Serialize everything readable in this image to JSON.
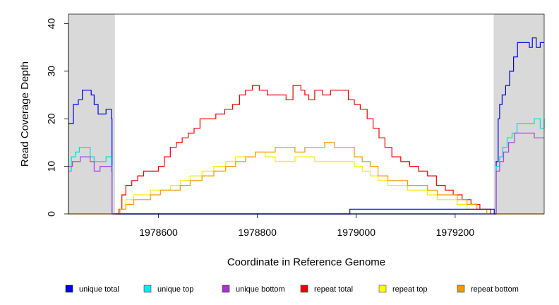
{
  "chart_data": {
    "type": "line",
    "title": "",
    "xlabel": "Coordinate in Reference Genome",
    "ylabel": "Read Coverage Depth",
    "xlim": [
      1978418,
      1979380
    ],
    "ylim": [
      0,
      42
    ],
    "x_ticks": [
      1978600,
      1978800,
      1979000,
      1979200
    ],
    "x_tick_labels": [
      "1978600",
      "1978800",
      "1979000",
      "1979200"
    ],
    "y_ticks": [
      0,
      10,
      20,
      30,
      40
    ],
    "y_tick_labels": [
      "0",
      "10",
      "20",
      "30",
      "40"
    ],
    "shaded_regions": [
      {
        "from": 1978418,
        "to": 1978512,
        "color": "#d9d9d9"
      },
      {
        "from": 1979278,
        "to": 1979380,
        "color": "#d9d9d9"
      }
    ],
    "series": [
      {
        "name": "unique total",
        "color": "#0000ee",
        "points": [
          [
            1978418,
            19
          ],
          [
            1978428,
            23
          ],
          [
            1978438,
            24
          ],
          [
            1978446,
            26
          ],
          [
            1978464,
            25
          ],
          [
            1978470,
            23
          ],
          [
            1978478,
            21
          ],
          [
            1978494,
            22
          ],
          [
            1978505,
            20
          ],
          [
            1978506,
            0
          ],
          [
            1979282,
            0
          ],
          [
            1979283,
            11
          ],
          [
            1979287,
            20
          ],
          [
            1979290,
            23
          ],
          [
            1979295,
            25
          ],
          [
            1979302,
            27
          ],
          [
            1979310,
            30
          ],
          [
            1979318,
            33
          ],
          [
            1979326,
            36
          ],
          [
            1979350,
            35
          ],
          [
            1979356,
            37
          ],
          [
            1979364,
            35
          ],
          [
            1979372,
            36
          ],
          [
            1979380,
            36
          ]
        ]
      },
      {
        "name": "unique top",
        "color": "#00dddd",
        "points": [
          [
            1978418,
            9
          ],
          [
            1978424,
            12
          ],
          [
            1978432,
            13
          ],
          [
            1978440,
            14
          ],
          [
            1978462,
            12
          ],
          [
            1978470,
            11
          ],
          [
            1978480,
            11
          ],
          [
            1978494,
            12
          ],
          [
            1978505,
            10
          ],
          [
            1978506,
            0
          ],
          [
            1979282,
            0
          ],
          [
            1979283,
            10
          ],
          [
            1979290,
            12
          ],
          [
            1979296,
            14
          ],
          [
            1979305,
            16
          ],
          [
            1979315,
            17
          ],
          [
            1979325,
            19
          ],
          [
            1979360,
            20
          ],
          [
            1979372,
            18
          ],
          [
            1979380,
            20
          ]
        ]
      },
      {
        "name": "unique bottom",
        "color": "#aa44dd",
        "points": [
          [
            1978418,
            10
          ],
          [
            1978426,
            11
          ],
          [
            1978442,
            12
          ],
          [
            1978462,
            11
          ],
          [
            1978470,
            9
          ],
          [
            1978482,
            10
          ],
          [
            1978494,
            10
          ],
          [
            1978505,
            9
          ],
          [
            1978506,
            0
          ],
          [
            1979282,
            0
          ],
          [
            1979283,
            9
          ],
          [
            1979290,
            11
          ],
          [
            1979298,
            13
          ],
          [
            1979308,
            15
          ],
          [
            1979320,
            17
          ],
          [
            1979360,
            16
          ],
          [
            1979380,
            16
          ]
        ]
      },
      {
        "name": "repeat total",
        "color": "#ee0000",
        "points": [
          [
            1978512,
            0
          ],
          [
            1978520,
            1
          ],
          [
            1978526,
            4
          ],
          [
            1978534,
            6
          ],
          [
            1978546,
            7
          ],
          [
            1978558,
            8
          ],
          [
            1978570,
            9
          ],
          [
            1978582,
            9
          ],
          [
            1978600,
            10
          ],
          [
            1978612,
            12
          ],
          [
            1978624,
            14
          ],
          [
            1978636,
            15
          ],
          [
            1978648,
            16
          ],
          [
            1978660,
            17
          ],
          [
            1978672,
            18
          ],
          [
            1978684,
            20
          ],
          [
            1978700,
            20
          ],
          [
            1978716,
            21
          ],
          [
            1978734,
            22
          ],
          [
            1978750,
            23
          ],
          [
            1978764,
            25
          ],
          [
            1978776,
            26
          ],
          [
            1978790,
            27
          ],
          [
            1978804,
            26
          ],
          [
            1978820,
            25
          ],
          [
            1978840,
            25
          ],
          [
            1978858,
            24
          ],
          [
            1978872,
            27
          ],
          [
            1978888,
            26
          ],
          [
            1978896,
            25
          ],
          [
            1978904,
            24
          ],
          [
            1978916,
            26
          ],
          [
            1978932,
            25
          ],
          [
            1978948,
            26
          ],
          [
            1978964,
            26
          ],
          [
            1978984,
            24
          ],
          [
            1978996,
            23
          ],
          [
            1979008,
            22
          ],
          [
            1979022,
            20
          ],
          [
            1979034,
            18
          ],
          [
            1979046,
            16
          ],
          [
            1979058,
            14
          ],
          [
            1979072,
            12
          ],
          [
            1979090,
            11
          ],
          [
            1979108,
            10
          ],
          [
            1979126,
            9
          ],
          [
            1979144,
            8
          ],
          [
            1979162,
            6
          ],
          [
            1979180,
            5
          ],
          [
            1979196,
            4
          ],
          [
            1979214,
            3
          ],
          [
            1979232,
            2
          ],
          [
            1979250,
            1
          ],
          [
            1979264,
            1
          ],
          [
            1979272,
            0
          ]
        ]
      },
      {
        "name": "repeat top",
        "color": "#eeee00",
        "points": [
          [
            1978512,
            0
          ],
          [
            1978522,
            1
          ],
          [
            1978534,
            3
          ],
          [
            1978550,
            4
          ],
          [
            1978568,
            4
          ],
          [
            1978584,
            5
          ],
          [
            1978604,
            5
          ],
          [
            1978624,
            6
          ],
          [
            1978644,
            7
          ],
          [
            1978664,
            8
          ],
          [
            1978688,
            9
          ],
          [
            1978712,
            10
          ],
          [
            1978736,
            11
          ],
          [
            1978756,
            12
          ],
          [
            1978776,
            12
          ],
          [
            1978796,
            13
          ],
          [
            1978816,
            12
          ],
          [
            1978836,
            11
          ],
          [
            1978856,
            11
          ],
          [
            1978876,
            12
          ],
          [
            1978896,
            12
          ],
          [
            1978916,
            11
          ],
          [
            1978936,
            11
          ],
          [
            1978956,
            11
          ],
          [
            1978976,
            11
          ],
          [
            1978996,
            10
          ],
          [
            1979012,
            9
          ],
          [
            1979028,
            8
          ],
          [
            1979044,
            7
          ],
          [
            1979064,
            6
          ],
          [
            1979084,
            6
          ],
          [
            1979104,
            5
          ],
          [
            1979124,
            5
          ],
          [
            1979144,
            4
          ],
          [
            1979164,
            3
          ],
          [
            1979184,
            3
          ],
          [
            1979204,
            2
          ],
          [
            1979224,
            1
          ],
          [
            1979244,
            1
          ],
          [
            1979264,
            0
          ]
        ]
      },
      {
        "name": "repeat bottom",
        "color": "#ee9900",
        "points": [
          [
            1978512,
            0
          ],
          [
            1978522,
            1
          ],
          [
            1978534,
            2
          ],
          [
            1978550,
            3
          ],
          [
            1978568,
            3
          ],
          [
            1978584,
            4
          ],
          [
            1978604,
            5
          ],
          [
            1978624,
            5
          ],
          [
            1978644,
            6
          ],
          [
            1978664,
            7
          ],
          [
            1978688,
            8
          ],
          [
            1978712,
            9
          ],
          [
            1978736,
            10
          ],
          [
            1978756,
            11
          ],
          [
            1978776,
            12
          ],
          [
            1978796,
            13
          ],
          [
            1978816,
            13
          ],
          [
            1978836,
            14
          ],
          [
            1978856,
            14
          ],
          [
            1978876,
            13
          ],
          [
            1978896,
            14
          ],
          [
            1978916,
            14
          ],
          [
            1978936,
            15
          ],
          [
            1978956,
            14
          ],
          [
            1978976,
            14
          ],
          [
            1978996,
            12
          ],
          [
            1979012,
            11
          ],
          [
            1979028,
            10
          ],
          [
            1979044,
            8
          ],
          [
            1979064,
            7
          ],
          [
            1979084,
            7
          ],
          [
            1979104,
            6
          ],
          [
            1979124,
            6
          ],
          [
            1979144,
            5
          ],
          [
            1979164,
            4
          ],
          [
            1979184,
            4
          ],
          [
            1979204,
            3
          ],
          [
            1979224,
            2
          ],
          [
            1979244,
            1
          ],
          [
            1979264,
            0
          ]
        ]
      },
      {
        "name": "unique total (center)",
        "color": "#0000ee",
        "legend": false,
        "points": [
          [
            1978506,
            0
          ],
          [
            1978986,
            0
          ],
          [
            1978987,
            1
          ],
          [
            1979278,
            1
          ],
          [
            1979279,
            0
          ],
          [
            1979282,
            0
          ]
        ]
      },
      {
        "name": "repeat bottom (baseline)",
        "color": "#ee9900",
        "legend": false,
        "points": [
          [
            1978418,
            0
          ],
          [
            1978512,
            0
          ]
        ]
      },
      {
        "name": "repeat bottom (baseline right)",
        "color": "#ee9900",
        "legend": false,
        "points": [
          [
            1979282,
            0
          ],
          [
            1979380,
            0
          ]
        ]
      }
    ],
    "legend": [
      {
        "label": "unique total",
        "color": "#0000ee"
      },
      {
        "label": "unique top",
        "color": "#00eeee"
      },
      {
        "label": "unique bottom",
        "color": "#aa33cc"
      },
      {
        "label": "repeat total",
        "color": "#ee0000"
      },
      {
        "label": "repeat top",
        "color": "#ffff00"
      },
      {
        "label": "repeat bottom",
        "color": "#ee9900"
      }
    ],
    "legend_position": "bottom"
  }
}
